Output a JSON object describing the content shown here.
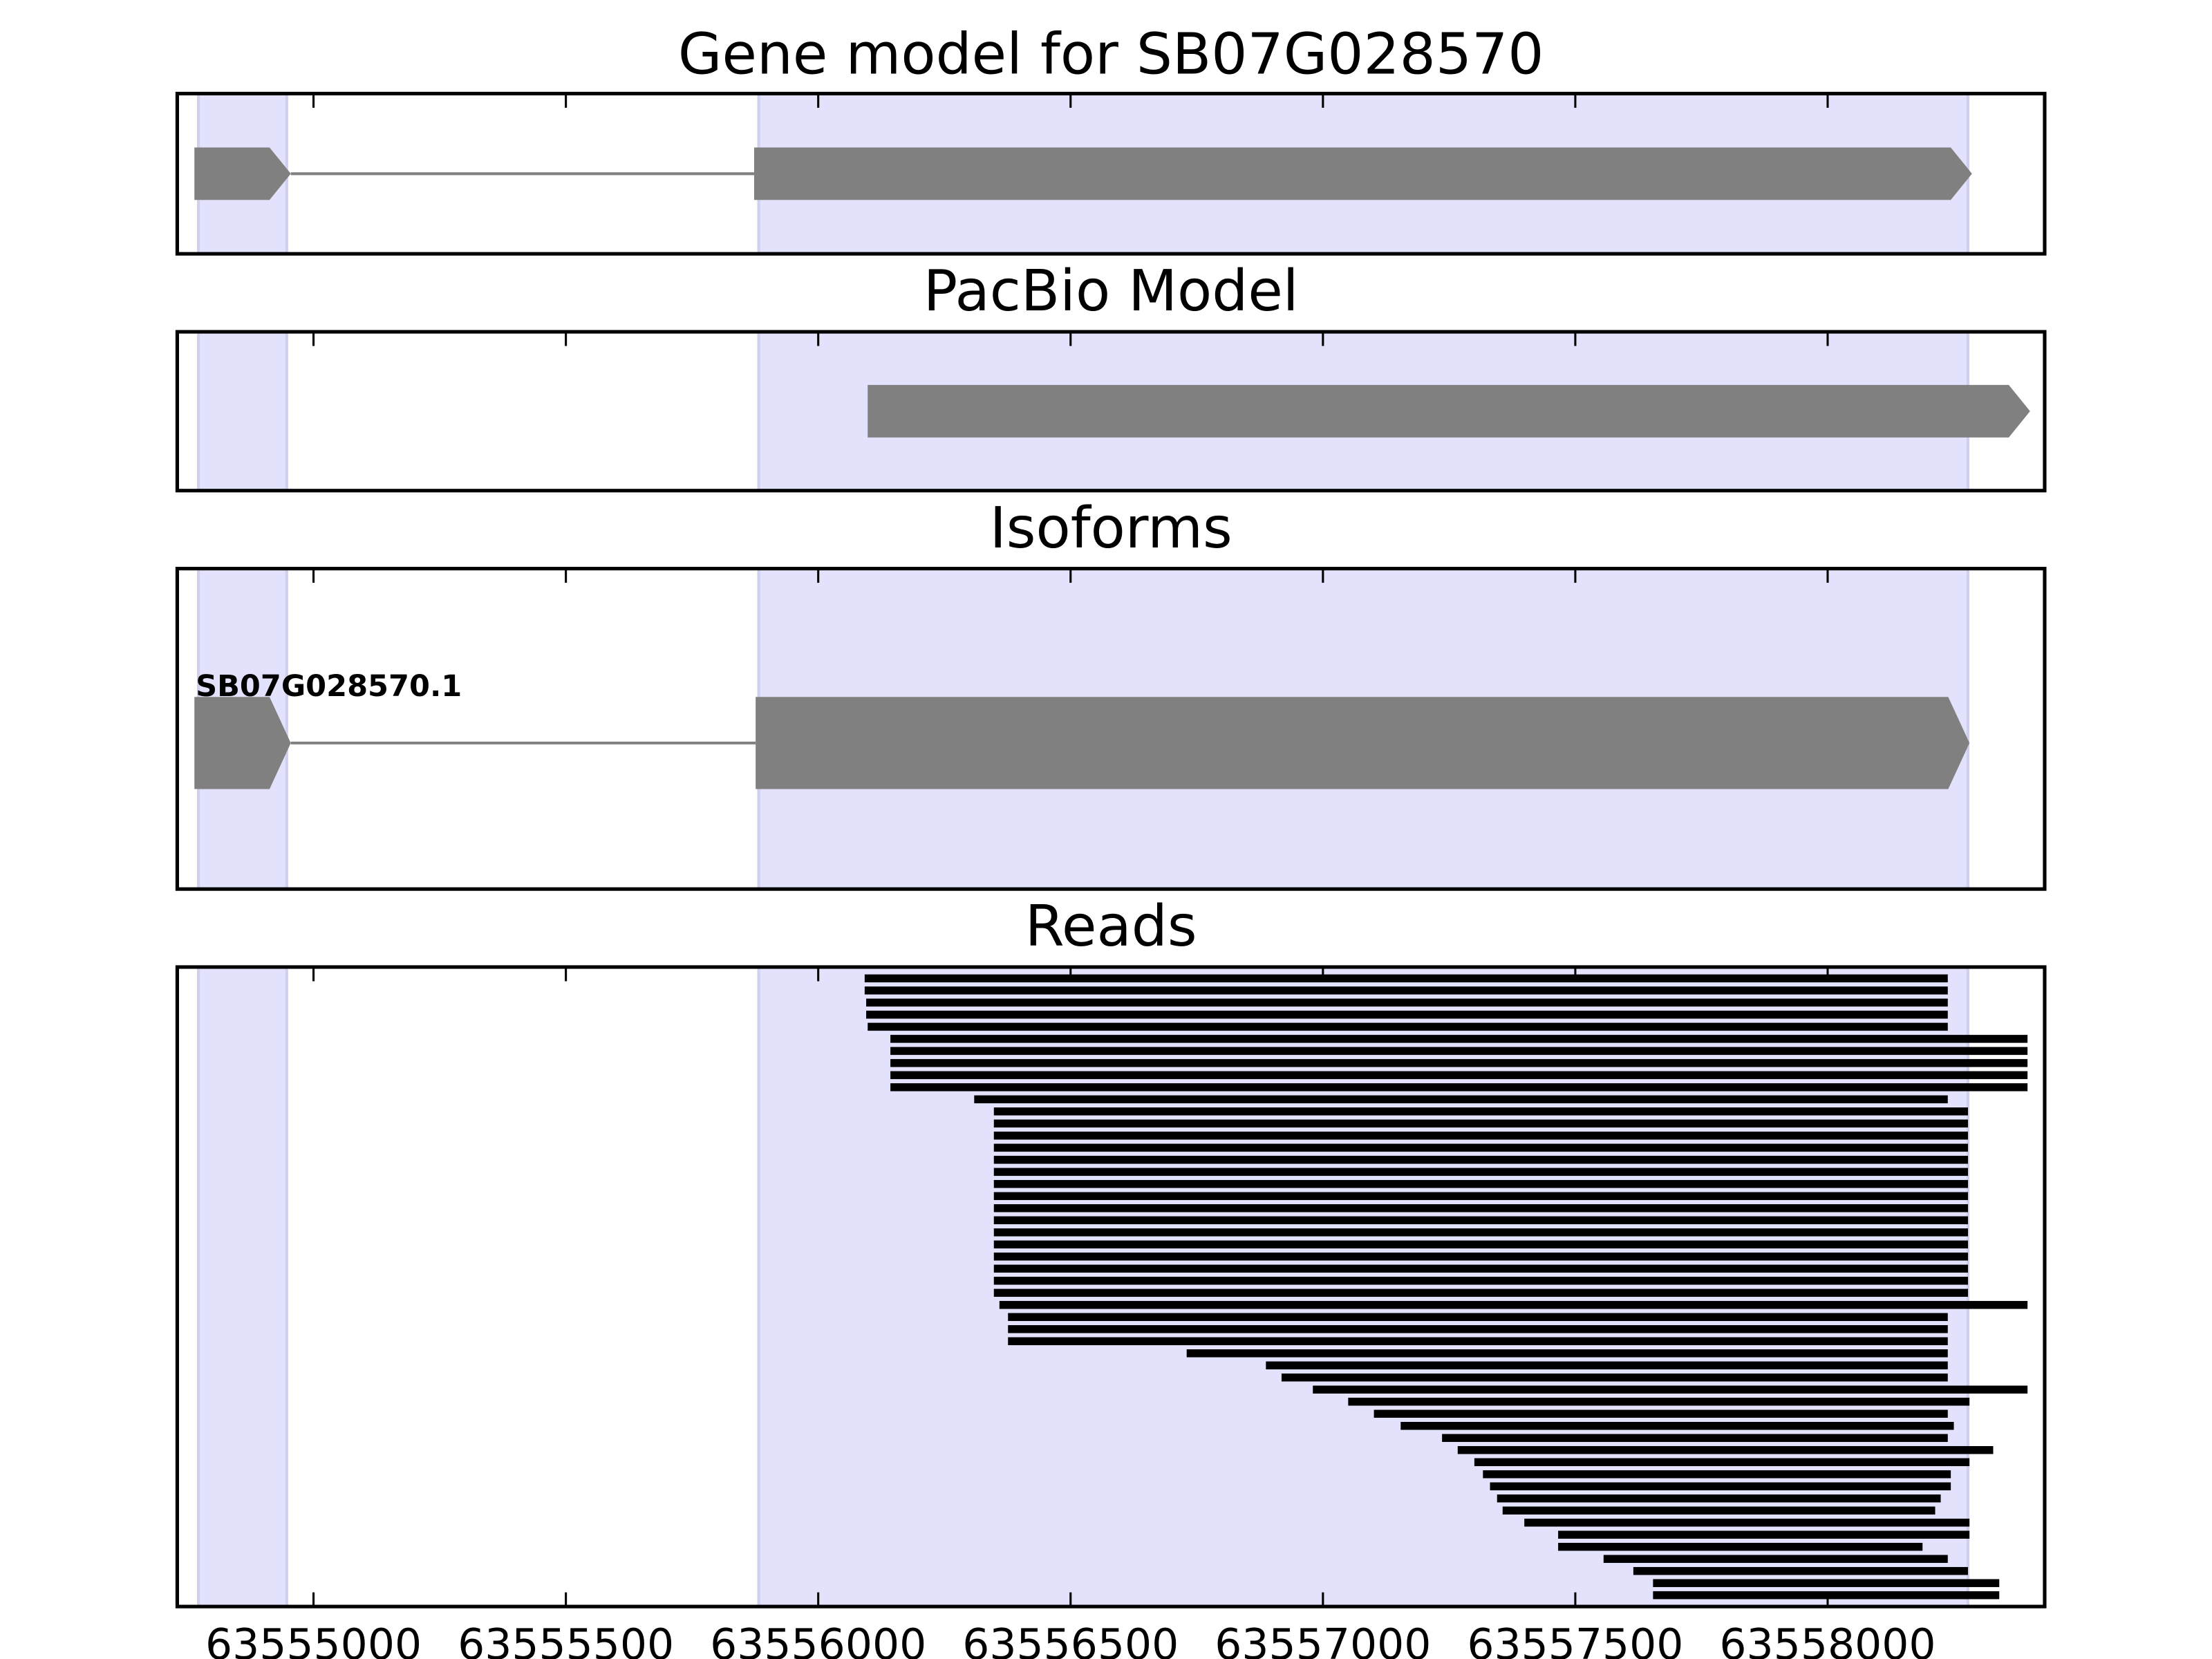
{
  "chart_data": [
    {
      "type": "gene",
      "title": "Gene model for SB07G028570",
      "xlim": [
        63554730,
        63558430
      ],
      "xticks": [
        63555000,
        63555500,
        63556000,
        63556500,
        63557000,
        63557500,
        63558000
      ],
      "show_tick_labels": false,
      "shade_color": "#e2e2fc",
      "color": "#808080",
      "shaded": [
        [
          63554772,
          63554947
        ],
        [
          63555882,
          63558278
        ]
      ],
      "exons": [
        [
          63554764,
          63554955
        ],
        [
          63555873,
          63558286
        ]
      ]
    },
    {
      "type": "gene",
      "title": "PacBio Model",
      "xlim": [
        63554730,
        63558430
      ],
      "xticks": [
        63555000,
        63555500,
        63556000,
        63556500,
        63557000,
        63557500,
        63558000
      ],
      "show_tick_labels": false,
      "shade_color": "#e2e2fc",
      "color": "#808080",
      "shaded": [
        [
          63554772,
          63554947
        ],
        [
          63555882,
          63558278
        ]
      ],
      "exons": [
        [
          63556098,
          63558401
        ]
      ]
    },
    {
      "type": "isoforms",
      "title": "Isoforms",
      "xlim": [
        63554730,
        63558430
      ],
      "xticks": [
        63555000,
        63555500,
        63556000,
        63556500,
        63557000,
        63557500,
        63558000
      ],
      "show_tick_labels": false,
      "shade_color": "#e2e2fc",
      "color": "#808080",
      "shaded": [
        [
          63554772,
          63554947
        ],
        [
          63555882,
          63558278
        ]
      ],
      "isoforms": [
        {
          "name": "SB07G028570.1",
          "exons": [
            [
              63554764,
              63554955
            ],
            [
              63555876,
              63558281
            ]
          ]
        }
      ]
    },
    {
      "type": "reads",
      "title": "Reads",
      "xlim": [
        63554730,
        63558430
      ],
      "xticks": [
        63555000,
        63555500,
        63556000,
        63556500,
        63557000,
        63557500,
        63558000
      ],
      "show_tick_labels": true,
      "shade_color": "#e2e2fc",
      "color": "#000000",
      "shaded": [
        [
          63554772,
          63554947
        ],
        [
          63555882,
          63558278
        ]
      ],
      "reads": [
        [
          63556092,
          63558238
        ],
        [
          63556092,
          63558238
        ],
        [
          63556095,
          63558238
        ],
        [
          63556095,
          63558238
        ],
        [
          63556098,
          63558238
        ],
        [
          63556143,
          63558396
        ],
        [
          63556143,
          63558396
        ],
        [
          63556143,
          63558396
        ],
        [
          63556143,
          63558396
        ],
        [
          63556143,
          63558396
        ],
        [
          63556309,
          63558238
        ],
        [
          63556348,
          63558278
        ],
        [
          63556348,
          63558278
        ],
        [
          63556348,
          63558278
        ],
        [
          63556348,
          63558278
        ],
        [
          63556348,
          63558278
        ],
        [
          63556348,
          63558278
        ],
        [
          63556348,
          63558278
        ],
        [
          63556348,
          63558278
        ],
        [
          63556348,
          63558278
        ],
        [
          63556348,
          63558278
        ],
        [
          63556348,
          63558278
        ],
        [
          63556348,
          63558278
        ],
        [
          63556348,
          63558278
        ],
        [
          63556348,
          63558278
        ],
        [
          63556348,
          63558278
        ],
        [
          63556348,
          63558278
        ],
        [
          63556359,
          63558396
        ],
        [
          63556376,
          63558238
        ],
        [
          63556376,
          63558238
        ],
        [
          63556376,
          63558238
        ],
        [
          63556730,
          63558238
        ],
        [
          63556887,
          63558238
        ],
        [
          63556918,
          63558238
        ],
        [
          63556980,
          63558396
        ],
        [
          63557050,
          63558281
        ],
        [
          63557101,
          63558238
        ],
        [
          63557154,
          63558250
        ],
        [
          63557236,
          63558238
        ],
        [
          63557267,
          63558328
        ],
        [
          63557300,
          63558281
        ],
        [
          63557317,
          63558244
        ],
        [
          63557331,
          63558244
        ],
        [
          63557345,
          63558224
        ],
        [
          63557356,
          63558213
        ],
        [
          63557399,
          63558281
        ],
        [
          63557466,
          63558281
        ],
        [
          63557466,
          63558188
        ],
        [
          63557556,
          63558238
        ],
        [
          63557615,
          63558278
        ],
        [
          63557654,
          63558340
        ],
        [
          63557654,
          63558340
        ]
      ]
    }
  ]
}
